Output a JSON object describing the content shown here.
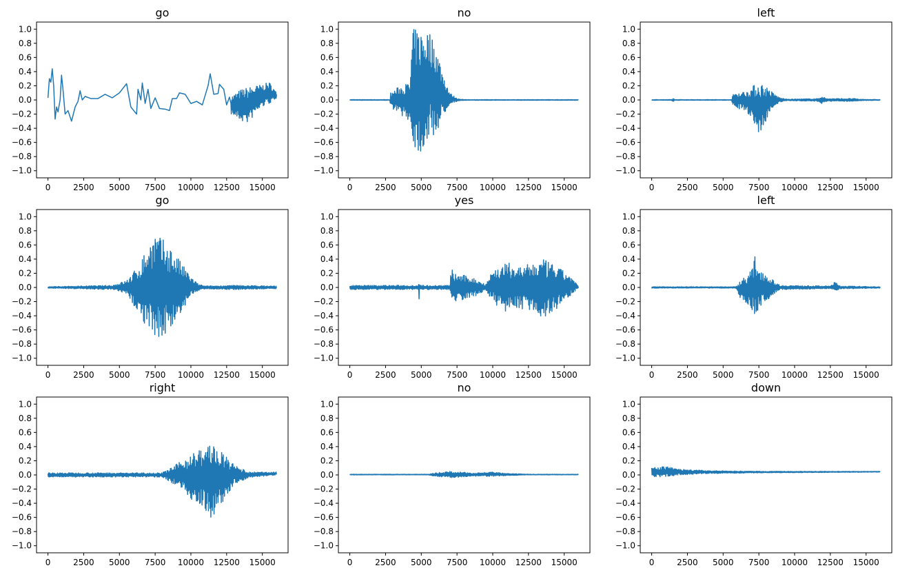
{
  "chart_data": {
    "type": "line",
    "layout": "3x3 grid",
    "line_color": "#1f77b4",
    "xlim": [
      -800,
      16800
    ],
    "ylim": [
      -1.1,
      1.1
    ],
    "xticks": [
      0,
      2500,
      5000,
      7500,
      10000,
      12500,
      15000
    ],
    "yticks": [
      1.0,
      0.8,
      0.6,
      0.4,
      0.2,
      0.0,
      -0.2,
      -0.4,
      -0.6,
      -0.8,
      -1.0
    ],
    "grid": false,
    "subplots": [
      {
        "title": "go",
        "points": [
          [
            0,
            0.03
          ],
          [
            100,
            0.3
          ],
          [
            200,
            0.25
          ],
          [
            300,
            0.44
          ],
          [
            400,
            0.2
          ],
          [
            500,
            -0.27
          ],
          [
            600,
            -0.1
          ],
          [
            700,
            -0.17
          ],
          [
            850,
            0.0
          ],
          [
            950,
            0.35
          ],
          [
            1050,
            0.15
          ],
          [
            1200,
            -0.2
          ],
          [
            1400,
            -0.15
          ],
          [
            1650,
            -0.3
          ],
          [
            1900,
            -0.1
          ],
          [
            2100,
            -0.02
          ],
          [
            2250,
            0.13
          ],
          [
            2400,
            0.0
          ],
          [
            2600,
            0.05
          ],
          [
            3000,
            0.02
          ],
          [
            3500,
            0.02
          ],
          [
            4000,
            0.08
          ],
          [
            4500,
            0.03
          ],
          [
            5000,
            0.1
          ],
          [
            5500,
            0.23
          ],
          [
            5800,
            -0.1
          ],
          [
            6200,
            -0.2
          ],
          [
            6300,
            0.15
          ],
          [
            6500,
            0.0
          ],
          [
            6600,
            0.24
          ],
          [
            6800,
            -0.05
          ],
          [
            7000,
            0.15
          ],
          [
            7200,
            -0.12
          ],
          [
            7500,
            0.03
          ],
          [
            7800,
            -0.12
          ],
          [
            8200,
            -0.13
          ],
          [
            8500,
            -0.15
          ],
          [
            8700,
            0.02
          ],
          [
            9000,
            0.02
          ],
          [
            9200,
            0.1
          ],
          [
            9600,
            0.08
          ],
          [
            10000,
            -0.05
          ],
          [
            10400,
            -0.02
          ],
          [
            10800,
            -0.07
          ],
          [
            11200,
            0.2
          ],
          [
            11350,
            0.37
          ],
          [
            11600,
            0.08
          ],
          [
            11900,
            0.09
          ],
          [
            12000,
            0.22
          ],
          [
            12300,
            0.15
          ],
          [
            12500,
            -0.07
          ],
          [
            12700,
            0.04
          ],
          [
            12800,
            -0.05
          ]
        ],
        "envelope": [
          [
            12800,
            0.05,
            -0.2
          ],
          [
            13500,
            0.15,
            -0.3
          ],
          [
            14000,
            0.18,
            -0.33
          ],
          [
            14500,
            0.2,
            -0.2
          ],
          [
            15000,
            0.22,
            -0.1
          ],
          [
            15500,
            0.25,
            -0.05
          ],
          [
            16000,
            0.1,
            0.0
          ]
        ]
      },
      {
        "title": "no",
        "envelope": [
          [
            0,
            0.005,
            -0.005
          ],
          [
            2800,
            0.005,
            -0.005
          ],
          [
            2850,
            0.1,
            -0.1
          ],
          [
            3500,
            0.2,
            -0.2
          ],
          [
            4200,
            0.25,
            -0.3
          ],
          [
            4400,
            1.0,
            -0.65
          ],
          [
            5000,
            1.0,
            -0.78
          ],
          [
            5500,
            1.0,
            -0.55
          ],
          [
            6000,
            0.8,
            -0.5
          ],
          [
            6500,
            0.4,
            -0.25
          ],
          [
            7000,
            0.1,
            -0.05
          ],
          [
            7500,
            0.02,
            -0.02
          ],
          [
            8000,
            0.005,
            -0.005
          ],
          [
            16000,
            0.005,
            -0.005
          ]
        ]
      },
      {
        "title": "left",
        "envelope": [
          [
            0,
            0.005,
            -0.005
          ],
          [
            1400,
            0.005,
            -0.005
          ],
          [
            1500,
            0.03,
            -0.03
          ],
          [
            1600,
            0.005,
            -0.005
          ],
          [
            5600,
            0.005,
            -0.005
          ],
          [
            5700,
            0.1,
            -0.1
          ],
          [
            6500,
            0.12,
            -0.15
          ],
          [
            7000,
            0.18,
            -0.25
          ],
          [
            7500,
            0.27,
            -0.5
          ],
          [
            8000,
            0.2,
            -0.3
          ],
          [
            8500,
            0.1,
            -0.1
          ],
          [
            9000,
            0.03,
            -0.03
          ],
          [
            9500,
            0.01,
            -0.01
          ],
          [
            11700,
            0.02,
            -0.02
          ],
          [
            11900,
            0.06,
            -0.05
          ],
          [
            12200,
            0.02,
            -0.02
          ],
          [
            14200,
            0.02,
            -0.02
          ],
          [
            14500,
            0.01,
            -0.01
          ],
          [
            16000,
            0.005,
            -0.005
          ]
        ]
      },
      {
        "title": "go",
        "envelope": [
          [
            0,
            0.01,
            -0.01
          ],
          [
            4500,
            0.03,
            -0.03
          ],
          [
            5500,
            0.1,
            -0.1
          ],
          [
            6300,
            0.3,
            -0.35
          ],
          [
            7000,
            0.6,
            -0.6
          ],
          [
            7500,
            0.77,
            -0.72
          ],
          [
            8500,
            0.6,
            -0.65
          ],
          [
            9500,
            0.3,
            -0.3
          ],
          [
            10000,
            0.15,
            -0.12
          ],
          [
            10500,
            0.05,
            -0.05
          ],
          [
            11000,
            0.02,
            -0.02
          ],
          [
            13000,
            0.03,
            -0.03
          ],
          [
            16000,
            0.02,
            -0.02
          ]
        ]
      },
      {
        "title": "yes",
        "envelope": [
          [
            0,
            0.03,
            -0.03
          ],
          [
            4800,
            0.03,
            -0.03
          ],
          [
            4850,
            0.17,
            -0.23
          ],
          [
            4900,
            0.03,
            -0.03
          ],
          [
            7000,
            0.03,
            -0.03
          ],
          [
            7100,
            0.28,
            -0.15
          ],
          [
            7300,
            0.2,
            -0.2
          ],
          [
            8500,
            0.15,
            -0.15
          ],
          [
            9500,
            0.05,
            -0.05
          ],
          [
            10000,
            0.25,
            -0.2
          ],
          [
            10500,
            0.3,
            -0.3
          ],
          [
            11000,
            0.35,
            -0.35
          ],
          [
            12000,
            0.3,
            -0.3
          ],
          [
            13000,
            0.35,
            -0.35
          ],
          [
            13500,
            0.4,
            -0.45
          ],
          [
            14500,
            0.3,
            -0.3
          ],
          [
            15500,
            0.15,
            -0.1
          ],
          [
            16000,
            0.01,
            -0.01
          ]
        ]
      },
      {
        "title": "left",
        "envelope": [
          [
            0,
            0.01,
            -0.01
          ],
          [
            5900,
            0.01,
            -0.01
          ],
          [
            6200,
            0.1,
            -0.15
          ],
          [
            7000,
            0.25,
            -0.3
          ],
          [
            7200,
            0.45,
            -0.43
          ],
          [
            7500,
            0.3,
            -0.3
          ],
          [
            8500,
            0.1,
            -0.1
          ],
          [
            9000,
            0.03,
            -0.03
          ],
          [
            12500,
            0.02,
            -0.02
          ],
          [
            12800,
            0.08,
            -0.05
          ],
          [
            13200,
            0.02,
            -0.02
          ],
          [
            16000,
            0.01,
            -0.01
          ]
        ]
      },
      {
        "title": "right",
        "envelope": [
          [
            0,
            0.03,
            -0.03
          ],
          [
            8000,
            0.03,
            -0.03
          ],
          [
            9000,
            0.15,
            -0.15
          ],
          [
            10000,
            0.3,
            -0.35
          ],
          [
            11000,
            0.4,
            -0.5
          ],
          [
            11500,
            0.47,
            -0.63
          ],
          [
            12000,
            0.35,
            -0.45
          ],
          [
            13000,
            0.15,
            -0.15
          ],
          [
            14000,
            0.04,
            -0.04
          ],
          [
            16000,
            0.04,
            0.0
          ]
        ]
      },
      {
        "title": "no",
        "envelope": [
          [
            0,
            0.01,
            0.0
          ],
          [
            5500,
            0.01,
            0.0
          ],
          [
            6000,
            0.03,
            -0.02
          ],
          [
            7000,
            0.05,
            -0.04
          ],
          [
            8500,
            0.03,
            -0.02
          ],
          [
            10000,
            0.04,
            -0.02
          ],
          [
            11000,
            0.02,
            -0.01
          ],
          [
            12500,
            0.01,
            0.0
          ],
          [
            16000,
            0.01,
            0.0
          ]
        ]
      },
      {
        "title": "down",
        "envelope": [
          [
            0,
            0.1,
            -0.03
          ],
          [
            1000,
            0.12,
            -0.03
          ],
          [
            2000,
            0.08,
            0.0
          ],
          [
            4000,
            0.06,
            0.02
          ],
          [
            8000,
            0.05,
            0.03
          ],
          [
            16000,
            0.05,
            0.04
          ]
        ]
      }
    ]
  }
}
